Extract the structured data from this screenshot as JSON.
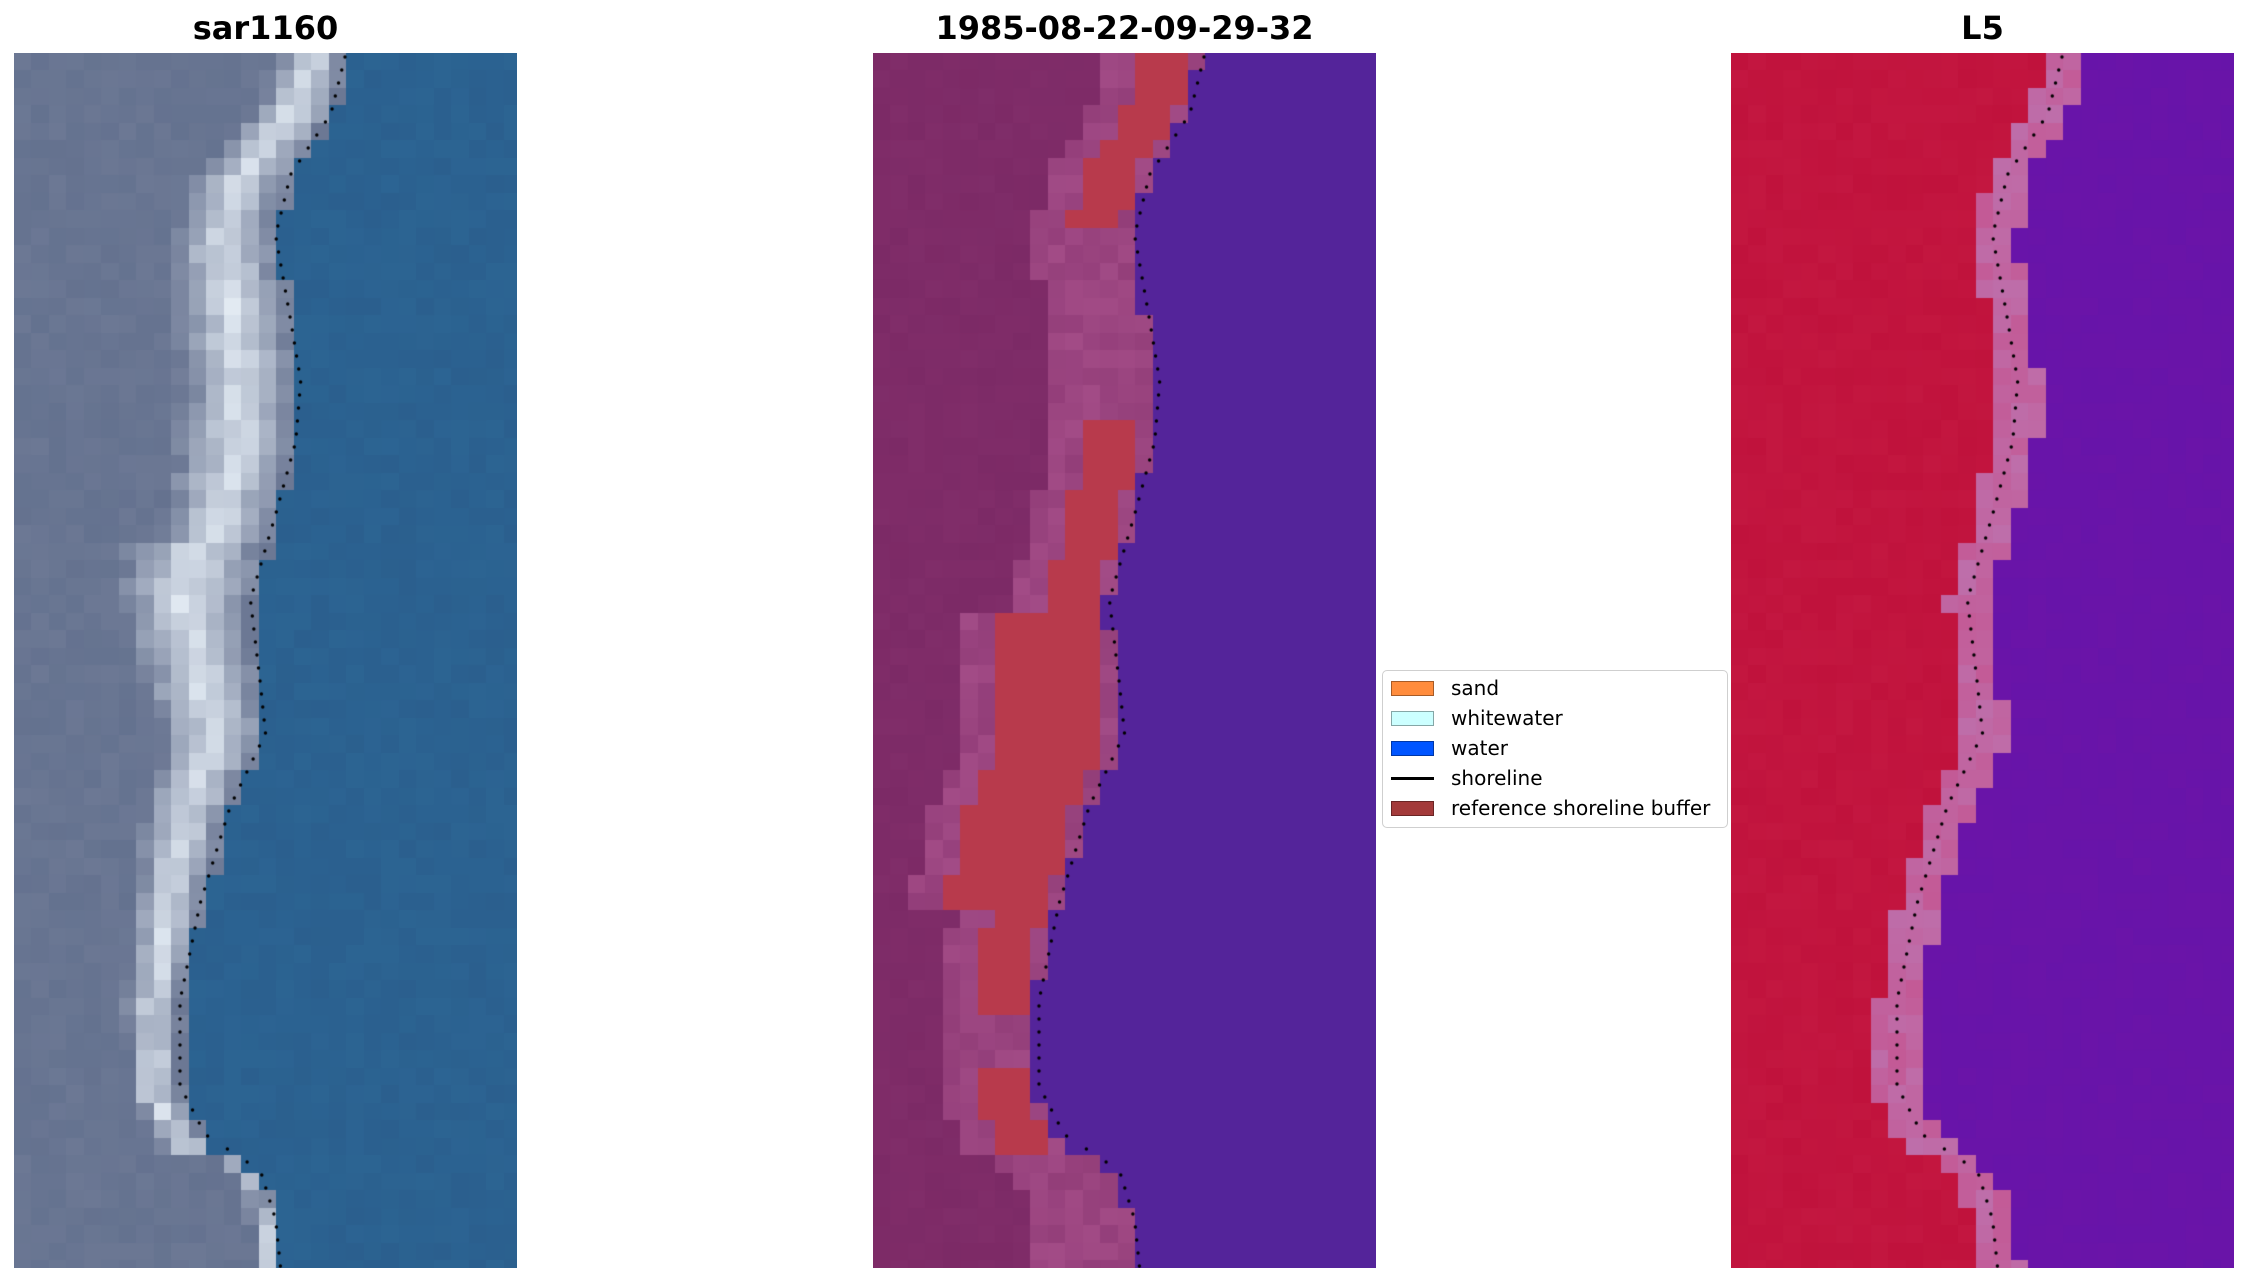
{
  "panels": [
    {
      "title": "sar1160",
      "kind": "rgb"
    },
    {
      "title": "1985-08-22-09-29-32",
      "kind": "classified"
    },
    {
      "title": "L5",
      "kind": "index"
    }
  ],
  "legend": {
    "items": [
      {
        "label": "sand",
        "color": "#FF8C3C",
        "type": "patch"
      },
      {
        "label": "whitewater",
        "color": "#CCFFFF",
        "type": "patch"
      },
      {
        "label": "water",
        "color": "#0055FF",
        "type": "patch"
      },
      {
        "label": "shoreline",
        "color": "#000000",
        "type": "line"
      },
      {
        "label": "reference shoreline buffer",
        "color": "#A33A3A",
        "type": "patch"
      }
    ]
  },
  "colors": {
    "rgb_land": "#6C7894",
    "rgb_sand": "#E6EEF6",
    "rgb_water": "#2B5F8E",
    "classified_land": "#7C2A66",
    "classified_transition": "#A24B86",
    "classified_buffer": "#B83A4C",
    "classified_water": "#54249A",
    "index_land": "#C0123C",
    "index_water": "#6A14A8",
    "shoreline": "#000000"
  }
}
